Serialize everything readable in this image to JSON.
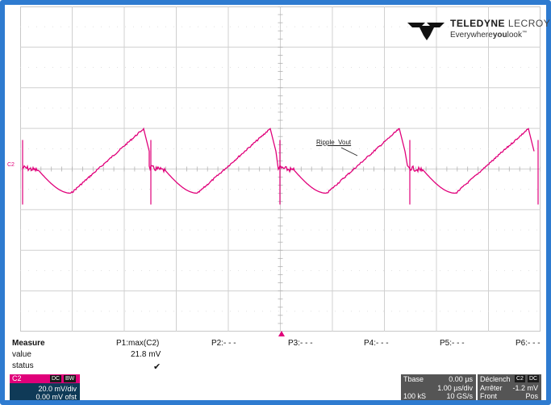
{
  "brand": {
    "name_bold": "TELEDYNE",
    "name_light": "LECROY",
    "tagline_pre": "Everywhere",
    "tagline_bold": "you",
    "tagline_post": "look",
    "tm": "™"
  },
  "channel_marker": "C2",
  "annotation": "Ripple_Vout",
  "colors": {
    "trace": "#e0007a",
    "frame": "#2e7bd0",
    "panel_dark": "#0f3a57",
    "panel_gray": "#555555"
  },
  "measure": {
    "header": "Measure",
    "row_labels": [
      "value",
      "status"
    ],
    "params": [
      {
        "name": "P1:max(C2)",
        "value": "21.8 mV",
        "status": "✔"
      },
      {
        "name": "P2:- - -",
        "value": "",
        "status": ""
      },
      {
        "name": "P3:- - -",
        "value": "",
        "status": ""
      },
      {
        "name": "P4:- - -",
        "value": "",
        "status": ""
      },
      {
        "name": "P5:- - -",
        "value": "",
        "status": ""
      },
      {
        "name": "P6:- - -",
        "value": "",
        "status": ""
      }
    ]
  },
  "channel_box": {
    "label": "C2",
    "badges": [
      "DC",
      "BW"
    ],
    "vdiv": "20.0 mV/div",
    "offset": "0.00 mV ofst"
  },
  "timebase": {
    "label": "Tbase",
    "delay": "0.00 µs",
    "tdiv": "1.00 µs/div",
    "samples": "100 kS",
    "rate": "10 GS/s"
  },
  "trigger": {
    "label": "Déclench",
    "badges": [
      "C2",
      "DC"
    ],
    "mode": "Arrêter",
    "level": "-1.2 mV",
    "slope_label": "Front",
    "slope": "Pos"
  }
}
